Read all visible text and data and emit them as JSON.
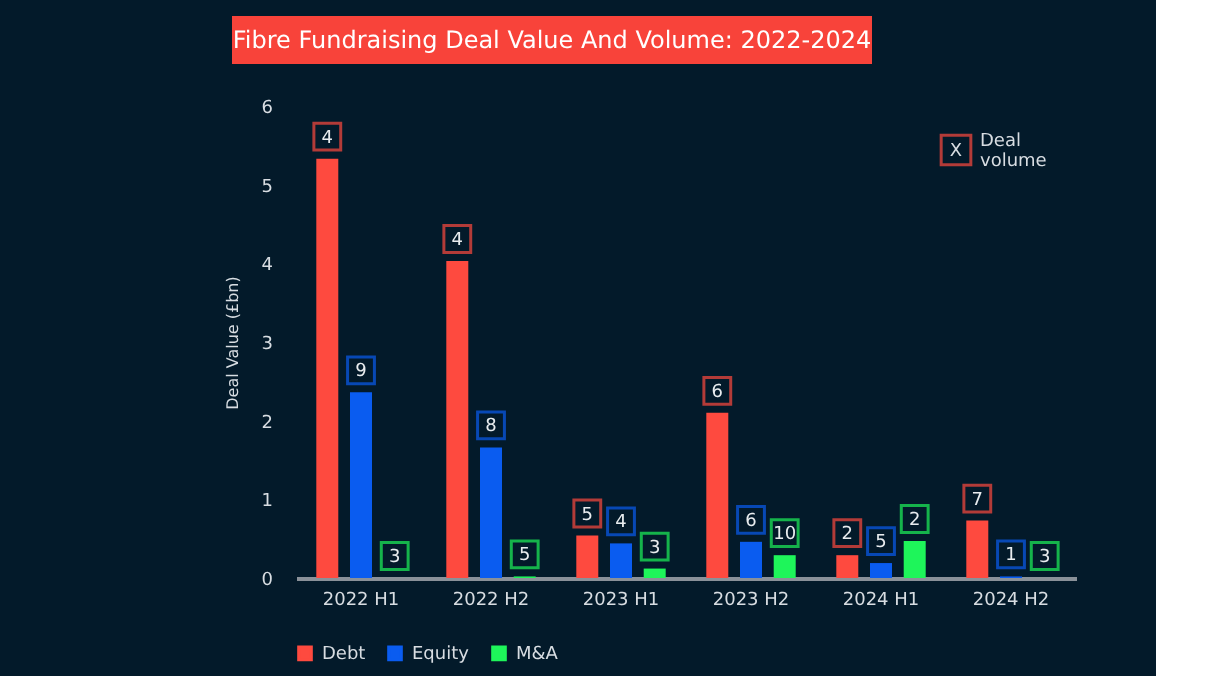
{
  "chart_data": {
    "type": "bar",
    "title": "Fibre Fundraising Deal Value And Volume: 2022-2024",
    "ylabel": "Deal Value (£bn)",
    "categories": [
      "2022 H1",
      "2022 H2",
      "2023 H1",
      "2023 H2",
      "2024 H1",
      "2024 H2"
    ],
    "series": [
      {
        "name": "Debt",
        "color": "#fe4a3f",
        "values": [
          5.33,
          4.03,
          0.54,
          2.1,
          0.29,
          0.73
        ]
      },
      {
        "name": "Equity",
        "color": "#0a5cf0",
        "values": [
          2.36,
          1.66,
          0.44,
          0.46,
          0.19,
          0.02
        ]
      },
      {
        "name": "M&A",
        "color": "#1ef55a",
        "values": [
          0,
          0.02,
          0.12,
          0.29,
          0.47,
          0
        ]
      }
    ],
    "ylim": [
      0,
      6
    ],
    "yticks": [
      0,
      1,
      2,
      3,
      4,
      5,
      6
    ],
    "grid": false,
    "legend": "bottom",
    "annotations": [
      "X",
      "Deal volume",
      "4",
      "4",
      "5",
      "6",
      "2",
      "7",
      "9",
      "8",
      "4",
      "6",
      "5",
      "1",
      "3",
      "5",
      "3",
      "10",
      "2",
      "3"
    ]
  }
}
